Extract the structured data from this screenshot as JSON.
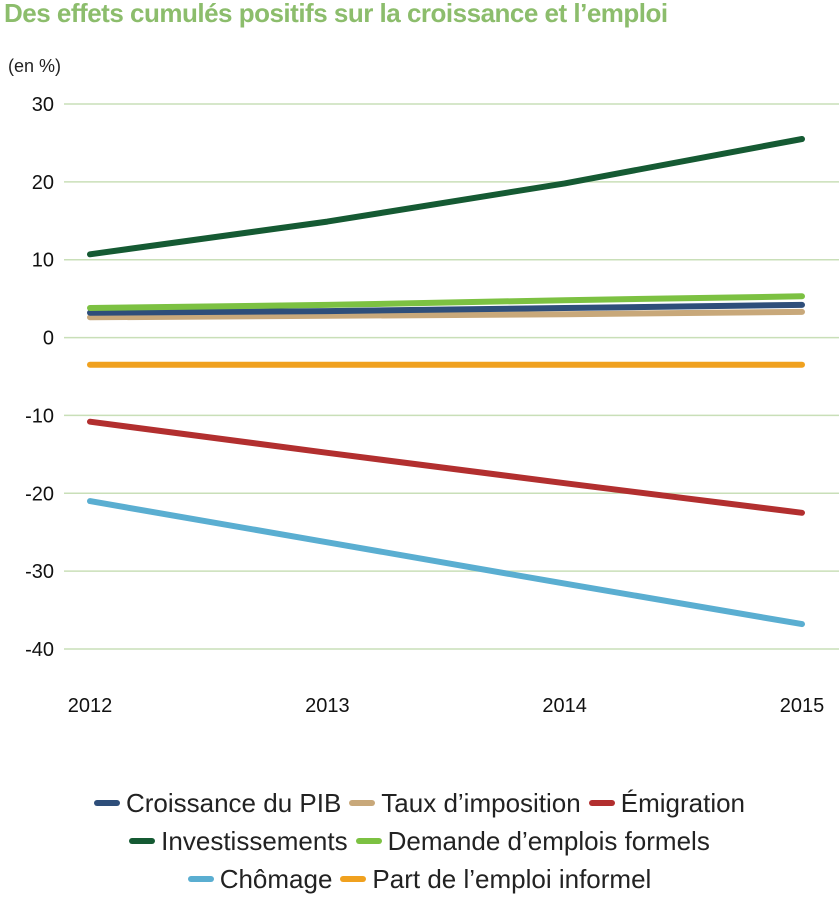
{
  "chart_data": {
    "type": "line",
    "title": "Des effets cumulés positifs sur la croissance et l’emploi",
    "ylabel": "(en %)",
    "xlabel": "",
    "x": [
      "2012",
      "2013",
      "2014",
      "2015"
    ],
    "ylim": [
      -40,
      30
    ],
    "yticks": [
      30,
      20,
      10,
      0,
      -10,
      -20,
      -30,
      -40
    ],
    "grid": true,
    "legend_position": "bottom",
    "series": [
      {
        "name": "Croissance du PIB",
        "color": "#2e4e7a",
        "values": [
          3.2,
          3.4,
          3.8,
          4.2
        ]
      },
      {
        "name": "Taux d’imposition",
        "color": "#c8a87a",
        "values": [
          2.6,
          2.8,
          3.0,
          3.3
        ]
      },
      {
        "name": "Émigration",
        "color": "#b22f2f",
        "values": [
          -10.8,
          -14.8,
          -18.7,
          -22.5
        ]
      },
      {
        "name": "Investissements",
        "color": "#155a33",
        "values": [
          10.7,
          14.9,
          19.8,
          25.5
        ]
      },
      {
        "name": "Demande d’emplois formels",
        "color": "#7cc142",
        "values": [
          3.8,
          4.2,
          4.8,
          5.3
        ]
      },
      {
        "name": "Chômage",
        "color": "#5aaed1",
        "values": [
          -21.0,
          -26.3,
          -31.6,
          -36.8
        ]
      },
      {
        "name": "Part de l’emploi informel",
        "color": "#f0a11f",
        "values": [
          -3.5,
          -3.5,
          -3.5,
          -3.5
        ]
      }
    ]
  },
  "legend_rows": [
    [
      0,
      1,
      2
    ],
    [
      3,
      4
    ],
    [
      5,
      6
    ]
  ]
}
